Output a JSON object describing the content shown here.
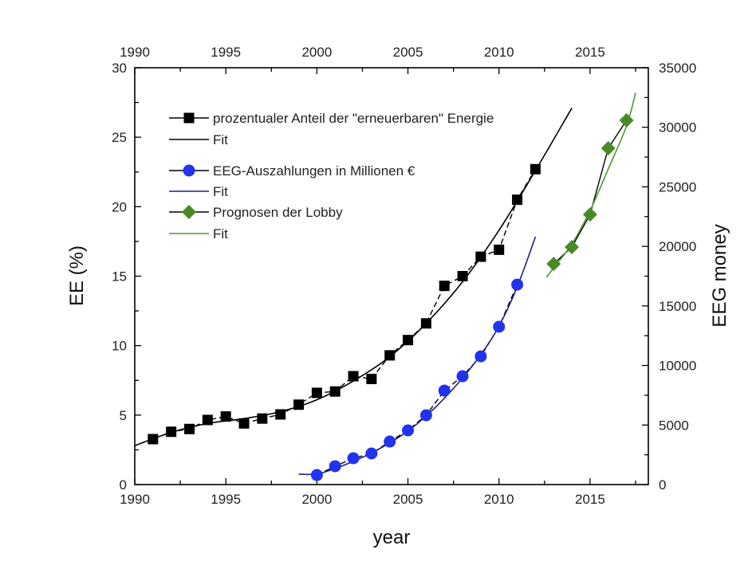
{
  "chart_data": {
    "type": "line",
    "title": "",
    "xlabel": "year",
    "ylabel": "EE (%)",
    "ylabel_right": "EEG money",
    "xlim": [
      1990,
      2018.2
    ],
    "ylim": [
      0,
      30
    ],
    "ylim_right": [
      0,
      35000
    ],
    "x_ticks": [
      1990,
      1995,
      2000,
      2005,
      2010,
      2015
    ],
    "x_ticks_top": [
      1990,
      1995,
      2000,
      2005,
      2010,
      2015
    ],
    "y_ticks": [
      0,
      5,
      10,
      15,
      20,
      25,
      30
    ],
    "y_ticks_right": [
      0,
      5000,
      10000,
      15000,
      20000,
      25000,
      30000,
      35000
    ],
    "grid": false,
    "legend_position": "top-left",
    "series": [
      {
        "name": "prozentualer Anteil der \"erneuerbaren\" Energie",
        "axis": "left",
        "marker": "square",
        "color": "#000000",
        "line_style": "dashed",
        "x": [
          1991,
          1992,
          1993,
          1994,
          1995,
          1996,
          1997,
          1998,
          1999,
          2000,
          2001,
          2002,
          2003,
          2004,
          2005,
          2006,
          2007,
          2008,
          2009,
          2010,
          2011,
          2012
        ],
        "y": [
          3.27,
          3.8,
          4.0,
          4.65,
          4.9,
          4.4,
          4.75,
          5.05,
          5.75,
          6.6,
          6.7,
          7.8,
          7.6,
          9.3,
          10.4,
          11.6,
          14.3,
          15.0,
          16.4,
          16.9,
          20.5,
          22.7
        ]
      },
      {
        "name": "Fit",
        "axis": "left",
        "marker": "none",
        "color": "#000000",
        "line_style": "solid",
        "x": [
          1990,
          1992,
          1994,
          1996,
          1998,
          2000,
          2002,
          2004,
          2006,
          2008,
          2010,
          2012,
          2014
        ],
        "y": [
          2.8,
          3.75,
          4.4,
          4.75,
          5.25,
          6.1,
          7.45,
          9.2,
          11.6,
          14.6,
          18.3,
          22.6,
          27.1
        ]
      },
      {
        "name": "EEG-Auszahlungen in Millionen €",
        "axis": "right",
        "marker": "circle",
        "color": "#2233ee",
        "line_style": "dashed",
        "x": [
          2000,
          2001,
          2002,
          2003,
          2004,
          2005,
          2006,
          2007,
          2008,
          2009,
          2010,
          2011
        ],
        "y": [
          800,
          1540,
          2210,
          2610,
          3610,
          4550,
          5820,
          7890,
          9100,
          10770,
          13250,
          16790
        ]
      },
      {
        "name": "Fit",
        "axis": "right",
        "marker": "none",
        "color": "#1a237e",
        "line_style": "solid",
        "x": [
          1999,
          2000,
          2001,
          2002,
          2003,
          2004,
          2005,
          2006,
          2007,
          2008,
          2009,
          2010,
          2011,
          2012
        ],
        "y": [
          870,
          890,
          1350,
          1950,
          2650,
          3500,
          4500,
          5750,
          7250,
          8950,
          10900,
          13300,
          16600,
          20800
        ]
      },
      {
        "name": "Prognosen der Lobby",
        "axis": "right",
        "marker": "diamond",
        "color": "#4a8a26",
        "line_style": "solid-black",
        "x": [
          2013,
          2014,
          2015,
          2016,
          2017
        ],
        "y": [
          18530,
          19940,
          22680,
          28240,
          30580
        ]
      },
      {
        "name": "Fit",
        "axis": "right",
        "marker": "none",
        "color": "#4a9a2e",
        "line_style": "solid",
        "x": [
          2012.6,
          2013,
          2014,
          2015,
          2016,
          2017,
          2017.5
        ],
        "y": [
          17400,
          18200,
          20200,
          23000,
          26500,
          30100,
          32900
        ]
      }
    ]
  }
}
